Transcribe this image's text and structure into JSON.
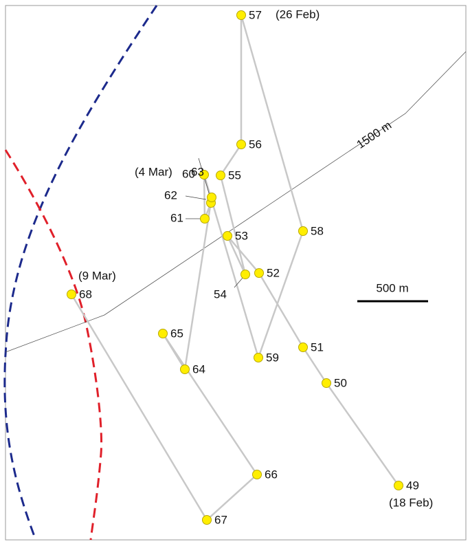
{
  "points": [
    {
      "id": "49",
      "date": "(18 Feb)"
    },
    {
      "id": "50"
    },
    {
      "id": "51"
    },
    {
      "id": "52"
    },
    {
      "id": "53"
    },
    {
      "id": "54"
    },
    {
      "id": "55"
    },
    {
      "id": "56"
    },
    {
      "id": "57",
      "date": "(26 Feb)"
    },
    {
      "id": "58"
    },
    {
      "id": "59"
    },
    {
      "id": "60"
    },
    {
      "id": "61"
    },
    {
      "id": "62"
    },
    {
      "id": "63",
      "date": "(4 Mar)"
    },
    {
      "id": "64"
    },
    {
      "id": "65"
    },
    {
      "id": "66"
    },
    {
      "id": "67"
    },
    {
      "id": "68",
      "date": "(9 Mar)"
    }
  ],
  "contour_label": "1500 m",
  "scale_label": "500 m"
}
